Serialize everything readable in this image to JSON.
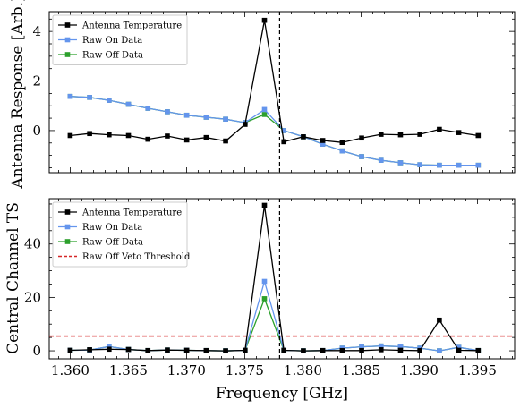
{
  "chart_data": [
    {
      "type": "line",
      "ylabel": "Antenna Response [Arb.]",
      "xlabel": "",
      "xlim": [
        1.3582,
        1.3982
      ],
      "ylim": [
        -1.7,
        4.8
      ],
      "yticks": [
        0,
        2,
        4
      ],
      "x": [
        1.36,
        1.36167,
        1.36334,
        1.36501,
        1.36668,
        1.36835,
        1.37002,
        1.37169,
        1.37336,
        1.37503,
        1.3767,
        1.37837,
        1.38004,
        1.38171,
        1.38338,
        1.38505,
        1.38672,
        1.38839,
        1.39006,
        1.39173,
        1.3934,
        1.39507
      ],
      "series": [
        {
          "name": "Antenna Temperature",
          "color": "#000000",
          "marker": "square",
          "values": [
            -0.2,
            -0.12,
            -0.17,
            -0.2,
            -0.35,
            -0.22,
            -0.38,
            -0.28,
            -0.42,
            0.25,
            4.45,
            -0.45,
            -0.25,
            -0.4,
            -0.48,
            -0.3,
            -0.15,
            -0.17,
            -0.15,
            0.05,
            -0.08,
            -0.2
          ]
        },
        {
          "name": "Raw On Data",
          "color": "#6495ed",
          "marker": "square",
          "values": [
            1.38,
            1.34,
            1.22,
            1.06,
            0.9,
            0.76,
            0.62,
            0.54,
            0.46,
            0.32,
            0.85,
            0.0,
            -0.25,
            -0.55,
            -0.82,
            -1.05,
            -1.2,
            -1.3,
            -1.38,
            -1.4,
            -1.4,
            -1.4
          ]
        },
        {
          "name": "Raw Off Data",
          "color": "#2ca02c",
          "marker": "square",
          "values": [
            1.38,
            1.34,
            1.22,
            1.06,
            0.9,
            0.76,
            0.62,
            0.54,
            0.46,
            0.32,
            0.65,
            0.0,
            -0.25,
            -0.55,
            -0.82,
            -1.05,
            -1.2,
            -1.3,
            -1.38,
            -1.4,
            -1.4,
            -1.4
          ]
        }
      ],
      "vline": {
        "x": 1.378,
        "style": "dashed",
        "color": "#000000"
      },
      "legend": {
        "placement": "top-left",
        "entries": [
          "Antenna Temperature",
          "Raw On Data",
          "Raw Off Data"
        ]
      },
      "grid": false
    },
    {
      "type": "line",
      "ylabel": "Central Channel TS",
      "xlabel": "Frequency [GHz]",
      "xlim": [
        1.3582,
        1.3982
      ],
      "ylim": [
        -3,
        57
      ],
      "yticks": [
        0,
        20,
        40
      ],
      "xticks": [
        1.36,
        1.365,
        1.37,
        1.375,
        1.38,
        1.385,
        1.39,
        1.395
      ],
      "xtick_labels": [
        "1.360",
        "1.365",
        "1.370",
        "1.375",
        "1.380",
        "1.385",
        "1.390",
        "1.395"
      ],
      "x": [
        1.36,
        1.36167,
        1.36334,
        1.36501,
        1.36668,
        1.36835,
        1.37002,
        1.37169,
        1.37336,
        1.37503,
        1.3767,
        1.37837,
        1.38004,
        1.38171,
        1.38338,
        1.38505,
        1.38672,
        1.38839,
        1.39006,
        1.39173,
        1.3934,
        1.39507
      ],
      "series": [
        {
          "name": "Antenna Temperature",
          "color": "#000000",
          "marker": "square",
          "values": [
            0.2,
            0.4,
            0.6,
            0.5,
            0.1,
            0.3,
            0.2,
            0.1,
            0.0,
            0.2,
            54.5,
            0.2,
            0.0,
            0.1,
            0.1,
            0.1,
            0.4,
            0.2,
            0.1,
            11.5,
            0.2,
            0.1
          ]
        },
        {
          "name": "Raw On Data",
          "color": "#6495ed",
          "marker": "square",
          "values": [
            0.2,
            0.3,
            1.6,
            0.5,
            0.1,
            0.3,
            0.2,
            0.1,
            0.0,
            0.2,
            26.0,
            0.2,
            0.0,
            0.1,
            1.0,
            1.5,
            1.8,
            1.6,
            1.0,
            0.0,
            1.3,
            0.1
          ]
        },
        {
          "name": "Raw Off Data",
          "color": "#2ca02c",
          "marker": "square",
          "values": [
            0.2,
            0.3,
            1.6,
            0.5,
            0.1,
            0.3,
            0.2,
            0.1,
            0.0,
            0.2,
            19.5,
            0.2,
            0.0,
            0.1,
            1.0,
            1.5,
            1.8,
            1.6,
            1.0,
            0.0,
            1.3,
            0.1
          ]
        },
        {
          "name": "Raw Off Veto Threshold",
          "color": "#d62728",
          "style": "dashed",
          "hline": 5.5
        }
      ],
      "vline": {
        "x": 1.378,
        "style": "dashed",
        "color": "#000000"
      },
      "legend": {
        "placement": "top-left",
        "entries": [
          "Antenna Temperature",
          "Raw On Data",
          "Raw Off Data",
          "Raw Off Veto Threshold"
        ]
      },
      "grid": false
    }
  ]
}
